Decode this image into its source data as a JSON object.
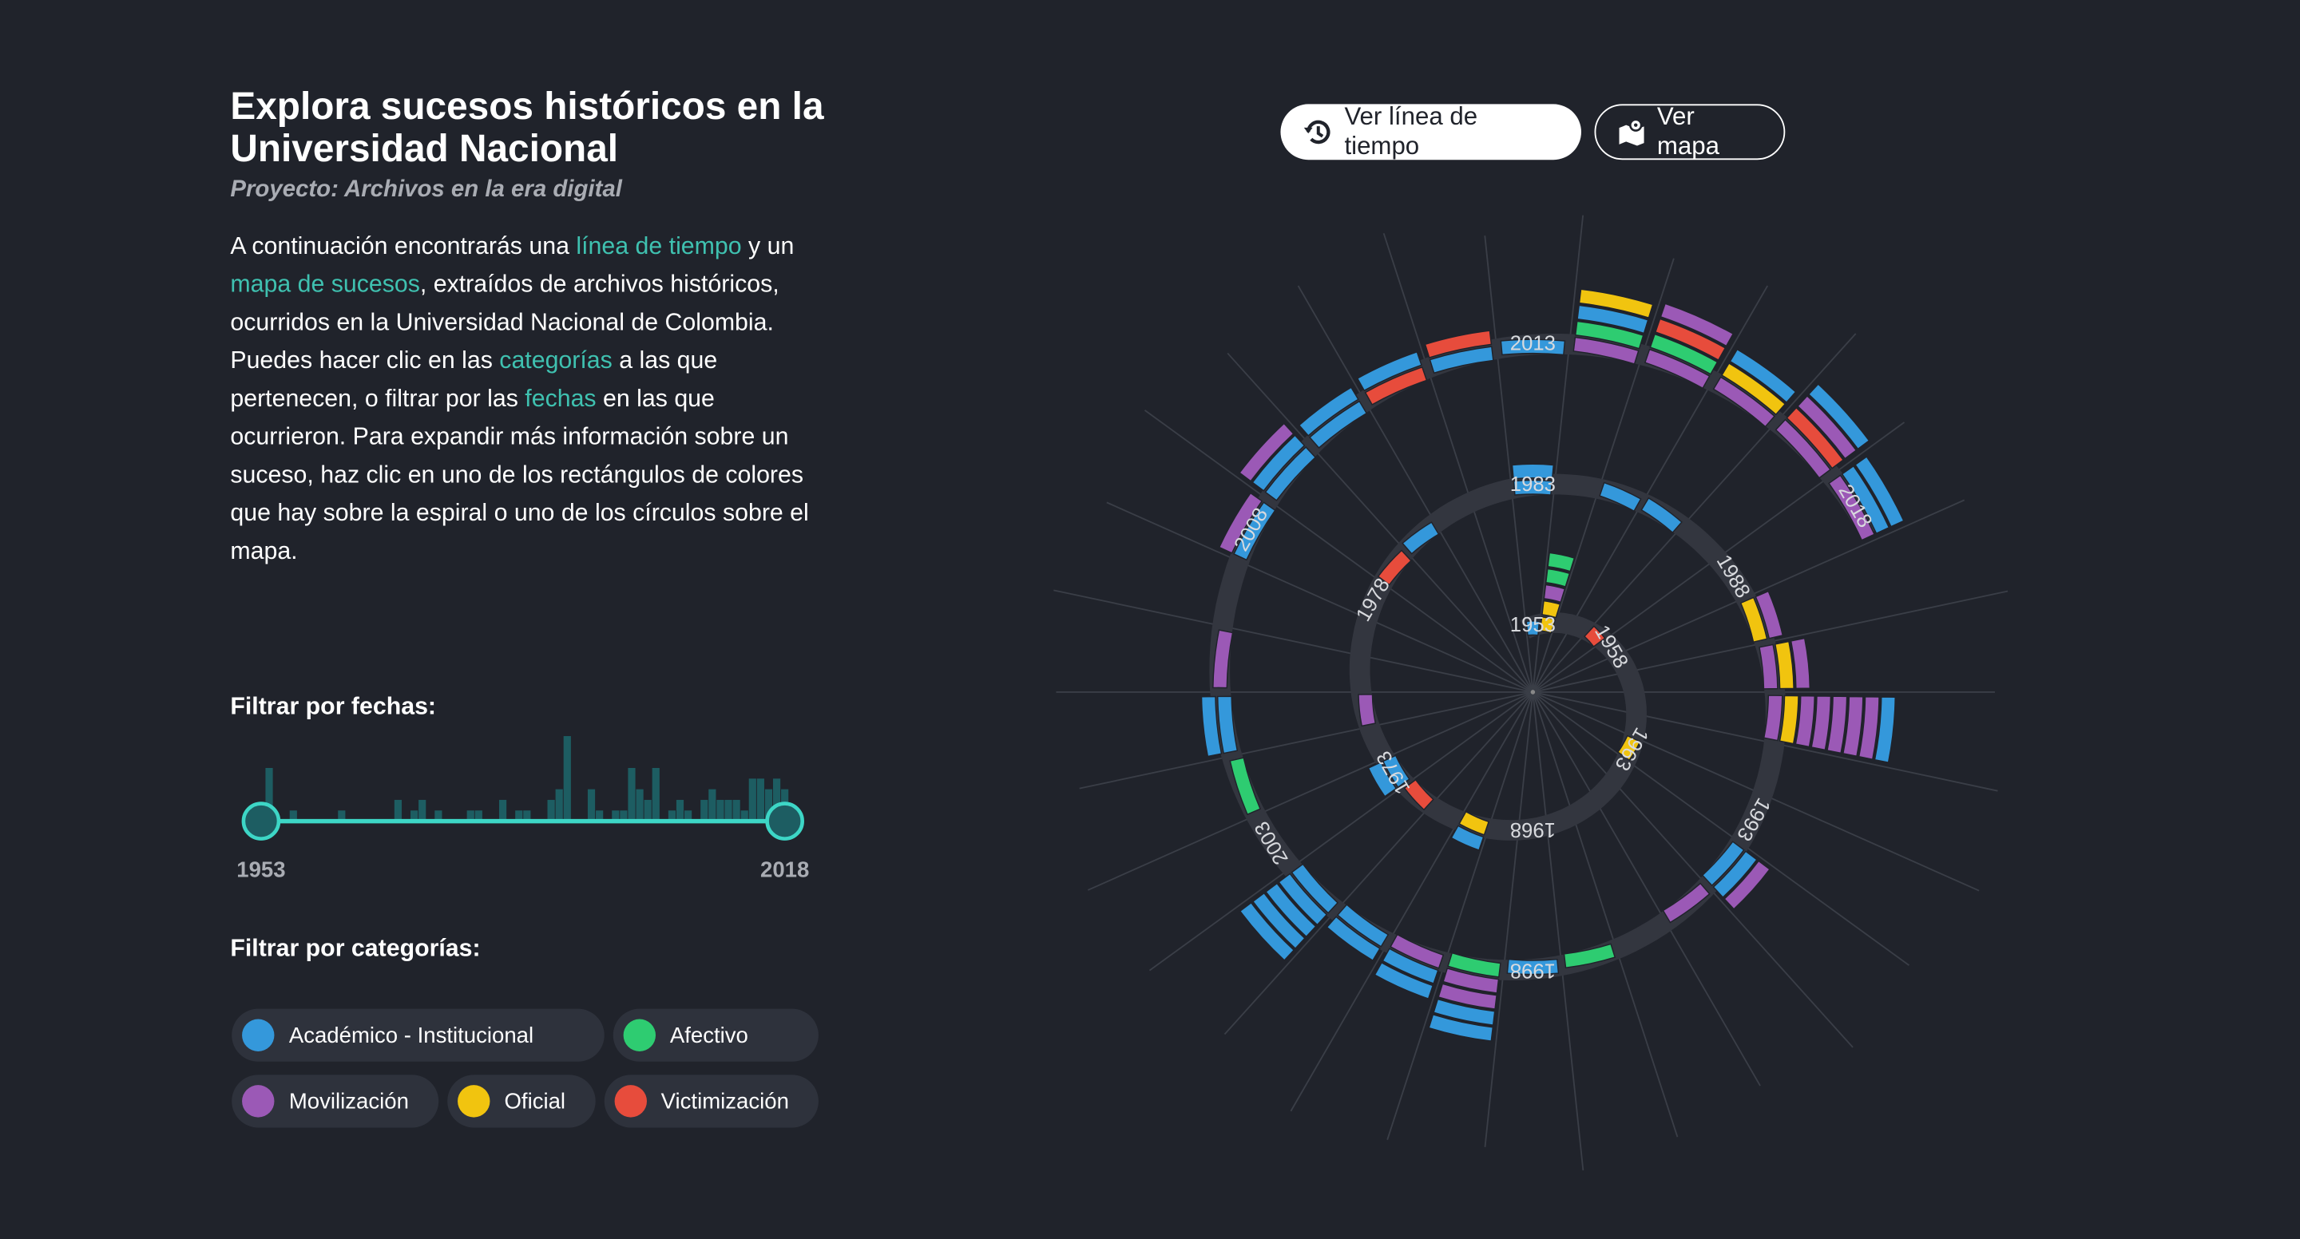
{
  "header": {
    "title": "Explora sucesos históricos en la Universidad Nacional",
    "subtitle": "Proyecto: Archivos en la era digital"
  },
  "intro": [
    {
      "text": "A continuación encontrarás una ",
      "link": false
    },
    {
      "text": "línea de tiempo",
      "link": true
    },
    {
      "text": " y un ",
      "link": false
    },
    {
      "text": "mapa de sucesos",
      "link": true
    },
    {
      "text": ", extraídos de archivos históricos, ocurridos en la Universidad Nacional de Colombia. Puedes hacer clic en las ",
      "link": false
    },
    {
      "text": "categorías",
      "link": true
    },
    {
      "text": " a las que pertenecen, o filtrar por las ",
      "link": false
    },
    {
      "text": "fechas",
      "link": true
    },
    {
      "text": " en las que ocurrieron. Para expandir más información sobre un suceso, haz clic en uno de los rectángulos de colores que hay sobre la espiral o uno de los círculos sobre el mapa.",
      "link": false
    }
  ],
  "buttons": [
    {
      "label": "Ver línea de tiempo",
      "active": true
    },
    {
      "label": "Ver mapa",
      "active": false
    }
  ],
  "date_filter": {
    "label": "Filtrar por fechas:",
    "min": 1953,
    "max": 2018
  },
  "category_filter": {
    "label": "Filtrar por categorías:",
    "categories": [
      {
        "name": "Académico - Institucional",
        "color": "#3498db"
      },
      {
        "name": "Afectivo",
        "color": "#2ecc71"
      },
      {
        "name": "Movilización",
        "color": "#9b59b6"
      },
      {
        "name": "Oficial",
        "color": "#f1c40f"
      },
      {
        "name": "Victimización",
        "color": "#e74c3c"
      }
    ]
  },
  "spiral": {
    "year_labels": [
      1953,
      1958,
      1963,
      1968,
      1973,
      1978,
      1983,
      1988,
      1993,
      1998,
      2003,
      2008,
      2013,
      2018
    ],
    "events": [
      {
        "year": 1953,
        "categories": [
          0
        ]
      },
      {
        "year": 1954,
        "categories": [
          3,
          3,
          2,
          1,
          1
        ]
      },
      {
        "year": 1957,
        "categories": [
          4
        ]
      },
      {
        "year": 1963,
        "categories": [
          3
        ]
      },
      {
        "year": 1970,
        "categories": [
          3,
          0
        ]
      },
      {
        "year": 1972,
        "categories": [
          4
        ]
      },
      {
        "year": 1973,
        "categories": [
          0,
          0
        ]
      },
      {
        "year": 1975,
        "categories": [
          2
        ]
      },
      {
        "year": 1979,
        "categories": [
          4
        ]
      },
      {
        "year": 1980,
        "categories": [
          0
        ]
      },
      {
        "year": 1983,
        "categories": [
          0,
          0
        ]
      },
      {
        "year": 1985,
        "categories": [
          0
        ]
      },
      {
        "year": 1986,
        "categories": [
          0
        ]
      },
      {
        "year": 1989,
        "categories": [
          3,
          2
        ]
      },
      {
        "year": 1990,
        "categories": [
          2,
          3,
          2
        ]
      },
      {
        "year": 1991,
        "categories": [
          2,
          3,
          2,
          2,
          2,
          2,
          2,
          0
        ]
      },
      {
        "year": 1994,
        "categories": [
          0,
          0,
          2
        ]
      },
      {
        "year": 1995,
        "categories": [
          2
        ]
      },
      {
        "year": 1997,
        "categories": [
          1
        ]
      },
      {
        "year": 1998,
        "categories": [
          0
        ]
      },
      {
        "year": 1999,
        "categories": [
          1,
          2,
          2,
          0,
          0
        ]
      },
      {
        "year": 2000,
        "categories": [
          2,
          0,
          0
        ]
      },
      {
        "year": 2001,
        "categories": [
          0,
          0
        ]
      },
      {
        "year": 2002,
        "categories": [
          0,
          0,
          0,
          0,
          0
        ]
      },
      {
        "year": 2004,
        "categories": [
          1
        ]
      },
      {
        "year": 2005,
        "categories": [
          0,
          0
        ]
      },
      {
        "year": 2006,
        "categories": [
          2
        ]
      },
      {
        "year": 2008,
        "categories": [
          0,
          2
        ]
      },
      {
        "year": 2009,
        "categories": [
          0,
          0,
          2
        ]
      },
      {
        "year": 2010,
        "categories": [
          0,
          0
        ]
      },
      {
        "year": 2011,
        "categories": [
          4,
          0
        ]
      },
      {
        "year": 2012,
        "categories": [
          0,
          4
        ]
      },
      {
        "year": 2013,
        "categories": [
          0
        ]
      },
      {
        "year": 2014,
        "categories": [
          2,
          1,
          0,
          3
        ]
      },
      {
        "year": 2015,
        "categories": [
          2,
          1,
          4,
          2
        ]
      },
      {
        "year": 2016,
        "categories": [
          2,
          3,
          0
        ]
      },
      {
        "year": 2017,
        "categories": [
          2,
          4,
          2,
          0
        ]
      },
      {
        "year": 2018,
        "categories": [
          2,
          0,
          0
        ]
      }
    ]
  }
}
